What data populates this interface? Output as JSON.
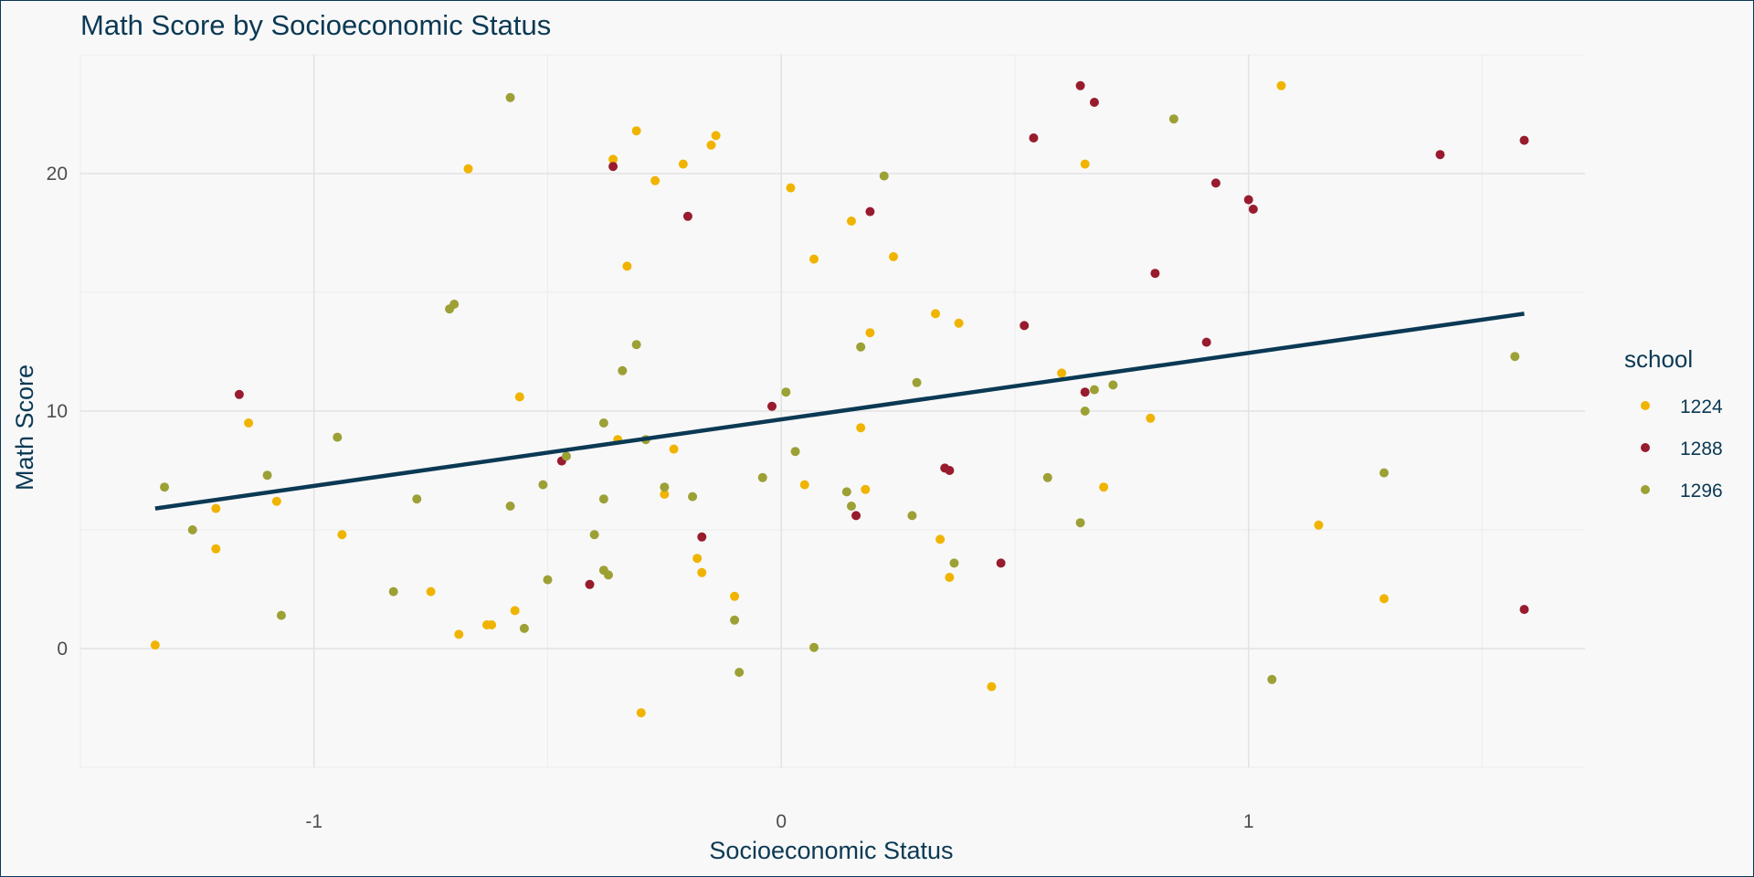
{
  "chart_data": {
    "type": "scatter",
    "title": "Math Score by Socioeconomic Status",
    "xlabel": "Socioeconomic Status",
    "ylabel": "Math Score",
    "xlim": [
      -1.5,
      1.72
    ],
    "ylim": [
      -5,
      25
    ],
    "x_ticks": [
      -1,
      0,
      1
    ],
    "x_tick_labels": [
      "-1",
      "0",
      "1"
    ],
    "y_ticks": [
      0,
      10,
      20
    ],
    "y_tick_labels": [
      "0",
      "10",
      "20"
    ],
    "grid": true,
    "legend": {
      "title": "school",
      "position": "right"
    },
    "series": [
      {
        "name": "1224",
        "color": "#f0b400",
        "points": [
          [
            -1.34,
            0.15
          ],
          [
            -1.21,
            5.9
          ],
          [
            -1.21,
            4.2
          ],
          [
            -1.14,
            9.5
          ],
          [
            -1.08,
            6.2
          ],
          [
            -0.94,
            4.8
          ],
          [
            -0.75,
            2.4
          ],
          [
            -0.69,
            0.6
          ],
          [
            -0.67,
            20.2
          ],
          [
            -0.63,
            1.0
          ],
          [
            -0.62,
            1.0
          ],
          [
            -0.57,
            1.6
          ],
          [
            -0.56,
            10.6
          ],
          [
            -0.36,
            20.6
          ],
          [
            -0.35,
            8.8
          ],
          [
            -0.33,
            16.1
          ],
          [
            -0.31,
            21.8
          ],
          [
            -0.3,
            -2.7
          ],
          [
            -0.27,
            19.7
          ],
          [
            -0.25,
            6.5
          ],
          [
            -0.23,
            8.4
          ],
          [
            -0.21,
            20.4
          ],
          [
            -0.18,
            3.8
          ],
          [
            -0.17,
            3.2
          ],
          [
            -0.15,
            21.2
          ],
          [
            -0.14,
            21.6
          ],
          [
            -0.1,
            2.2
          ],
          [
            0.02,
            19.4
          ],
          [
            0.05,
            6.9
          ],
          [
            0.07,
            16.4
          ],
          [
            0.15,
            18.0
          ],
          [
            0.17,
            9.3
          ],
          [
            0.18,
            6.7
          ],
          [
            0.19,
            13.3
          ],
          [
            0.24,
            16.5
          ],
          [
            0.33,
            14.1
          ],
          [
            0.34,
            4.6
          ],
          [
            0.36,
            3.0
          ],
          [
            0.38,
            13.7
          ],
          [
            0.45,
            -1.6
          ],
          [
            0.6,
            11.6
          ],
          [
            0.65,
            20.4
          ],
          [
            0.69,
            6.8
          ],
          [
            0.79,
            9.7
          ],
          [
            1.07,
            23.7
          ],
          [
            1.15,
            5.2
          ],
          [
            1.29,
            2.1
          ]
        ]
      },
      {
        "name": "1288",
        "color": "#981b2e",
        "points": [
          [
            -1.16,
            10.7
          ],
          [
            -0.47,
            7.9
          ],
          [
            -0.41,
            2.7
          ],
          [
            -0.36,
            20.3
          ],
          [
            -0.2,
            18.2
          ],
          [
            -0.17,
            4.7
          ],
          [
            -0.02,
            10.2
          ],
          [
            0.16,
            5.6
          ],
          [
            0.19,
            18.4
          ],
          [
            0.35,
            7.6
          ],
          [
            0.36,
            7.5
          ],
          [
            0.47,
            3.6
          ],
          [
            0.52,
            13.6
          ],
          [
            0.54,
            21.5
          ],
          [
            0.64,
            23.7
          ],
          [
            0.65,
            10.8
          ],
          [
            0.67,
            23.0
          ],
          [
            0.8,
            15.8
          ],
          [
            0.91,
            12.9
          ],
          [
            0.93,
            19.6
          ],
          [
            1.0,
            18.9
          ],
          [
            1.01,
            18.5
          ],
          [
            1.41,
            20.8
          ],
          [
            1.59,
            21.4
          ],
          [
            1.59,
            1.65
          ]
        ]
      },
      {
        "name": "1296",
        "color": "#9da035",
        "points": [
          [
            -1.32,
            6.8
          ],
          [
            -1.26,
            5.0
          ],
          [
            -1.1,
            7.3
          ],
          [
            -1.07,
            1.4
          ],
          [
            -0.95,
            8.9
          ],
          [
            -0.78,
            6.3
          ],
          [
            -0.83,
            2.4
          ],
          [
            -0.71,
            14.3
          ],
          [
            -0.7,
            14.5
          ],
          [
            -0.58,
            23.2
          ],
          [
            -0.58,
            6.0
          ],
          [
            -0.55,
            0.85
          ],
          [
            -0.51,
            6.9
          ],
          [
            -0.5,
            2.9
          ],
          [
            -0.46,
            8.1
          ],
          [
            -0.4,
            4.8
          ],
          [
            -0.38,
            9.5
          ],
          [
            -0.38,
            6.3
          ],
          [
            -0.38,
            3.3
          ],
          [
            -0.37,
            3.1
          ],
          [
            -0.34,
            11.7
          ],
          [
            -0.31,
            12.8
          ],
          [
            -0.29,
            8.8
          ],
          [
            -0.25,
            6.8
          ],
          [
            -0.19,
            6.4
          ],
          [
            -0.1,
            1.2
          ],
          [
            -0.09,
            -1.0
          ],
          [
            -0.04,
            7.2
          ],
          [
            0.01,
            10.8
          ],
          [
            0.03,
            8.3
          ],
          [
            0.07,
            0.05
          ],
          [
            0.14,
            6.6
          ],
          [
            0.15,
            6.0
          ],
          [
            0.17,
            12.7
          ],
          [
            0.22,
            19.9
          ],
          [
            0.28,
            5.6
          ],
          [
            0.29,
            11.2
          ],
          [
            0.37,
            3.6
          ],
          [
            0.57,
            7.2
          ],
          [
            0.64,
            5.3
          ],
          [
            0.65,
            10.0
          ],
          [
            0.67,
            10.9
          ],
          [
            0.71,
            11.1
          ],
          [
            0.84,
            22.3
          ],
          [
            1.05,
            -1.3
          ],
          [
            1.29,
            7.4
          ],
          [
            1.57,
            12.3
          ]
        ]
      }
    ],
    "trend_line": {
      "color": "#0b3954",
      "from": [
        -1.34,
        5.9
      ],
      "to": [
        1.59,
        14.1
      ]
    }
  }
}
